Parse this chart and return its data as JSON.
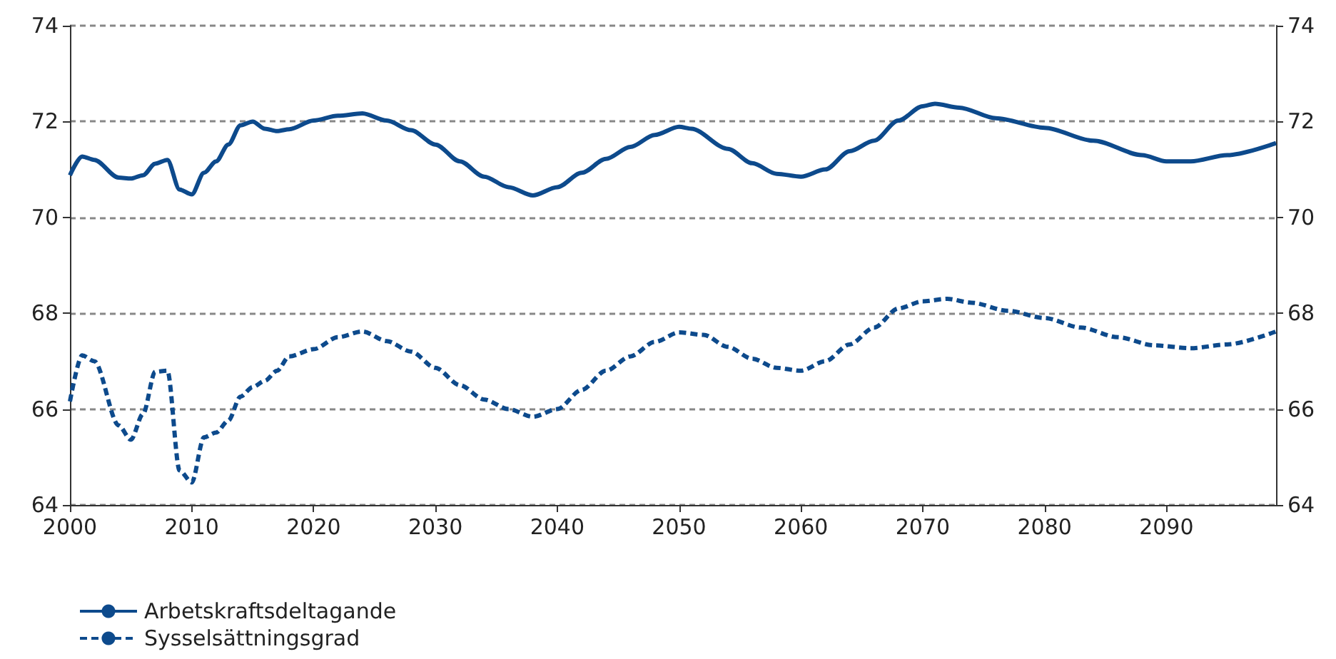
{
  "chart_data": {
    "type": "line",
    "xlim": [
      2000,
      2099
    ],
    "xticks": [
      2000,
      2010,
      2020,
      2030,
      2040,
      2050,
      2060,
      2070,
      2080,
      2090
    ],
    "ylim": [
      64,
      74
    ],
    "yticks": [
      64,
      66,
      68,
      70,
      72,
      74
    ],
    "y2lim": [
      64,
      74
    ],
    "y2ticks": [
      64,
      66,
      68,
      70,
      72,
      74
    ],
    "grid": "y",
    "legend": "bottom left",
    "marker": "none",
    "series": [
      {
        "name": "Arbetskraftsdeltagande",
        "color": "#0d4a8c",
        "line_style": "solid",
        "x": [
          2000,
          2001,
          2002,
          2004,
          2005,
          2006,
          2007,
          2008,
          2009,
          2010,
          2011,
          2012,
          2013,
          2014,
          2015,
          2016,
          2017,
          2018,
          2020,
          2022,
          2024,
          2026,
          2028,
          2030,
          2032,
          2034,
          2036,
          2038,
          2040,
          2042,
          2044,
          2046,
          2048,
          2050,
          2051,
          2054,
          2056,
          2058,
          2060,
          2062,
          2064,
          2066,
          2068,
          2070,
          2071,
          2073,
          2076,
          2080,
          2084,
          2088,
          2090,
          2092,
          2095,
          2099
        ],
        "values": [
          70.88,
          71.27,
          71.2,
          70.83,
          70.81,
          70.88,
          71.12,
          71.2,
          70.58,
          70.48,
          70.93,
          71.17,
          71.52,
          71.92,
          72.0,
          71.85,
          71.8,
          71.84,
          72.02,
          72.12,
          72.17,
          72.02,
          71.82,
          71.52,
          71.17,
          70.85,
          70.63,
          70.46,
          70.63,
          70.93,
          71.22,
          71.47,
          71.72,
          71.89,
          71.85,
          71.43,
          71.13,
          70.91,
          70.85,
          71.0,
          71.38,
          71.6,
          72.02,
          72.32,
          72.37,
          72.29,
          72.07,
          71.87,
          71.6,
          71.3,
          71.17,
          71.17,
          71.3,
          71.55
        ]
      },
      {
        "name": "Sysselsättningsgrad",
        "color": "#0d4a8c",
        "line_style": "dashed",
        "x": [
          2000,
          2001,
          2002,
          2004,
          2005,
          2006,
          2007,
          2008,
          2009,
          2010,
          2011,
          2012,
          2013,
          2014,
          2015,
          2016,
          2017,
          2018,
          2020,
          2022,
          2024,
          2026,
          2028,
          2030,
          2032,
          2034,
          2036,
          2038,
          2040,
          2042,
          2044,
          2046,
          2048,
          2050,
          2052,
          2054,
          2056,
          2058,
          2060,
          2062,
          2064,
          2066,
          2068,
          2070,
          2072,
          2074,
          2077,
          2080,
          2083,
          2086,
          2089,
          2092,
          2095,
          2099
        ],
        "values": [
          66.16,
          67.12,
          67.0,
          65.66,
          65.36,
          65.9,
          66.78,
          66.8,
          64.72,
          64.47,
          65.41,
          65.51,
          65.76,
          66.26,
          66.46,
          66.59,
          66.8,
          67.1,
          67.25,
          67.5,
          67.62,
          67.42,
          67.2,
          66.86,
          66.5,
          66.2,
          66.0,
          65.84,
          66.0,
          66.4,
          66.8,
          67.1,
          67.4,
          67.6,
          67.55,
          67.3,
          67.05,
          66.86,
          66.8,
          67.0,
          67.35,
          67.7,
          68.1,
          68.25,
          68.3,
          68.22,
          68.05,
          67.9,
          67.7,
          67.5,
          67.33,
          67.27,
          67.35,
          67.62
        ]
      }
    ]
  }
}
